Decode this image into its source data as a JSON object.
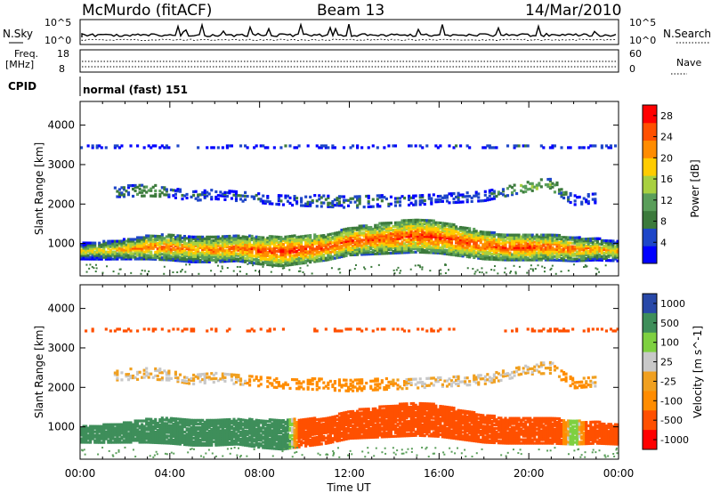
{
  "header": {
    "station": "McMurdo (fitACF)",
    "beam": "Beam 13",
    "date": "14/Mar/2010"
  },
  "noise_panel": {
    "left_label": "N.Sky",
    "right_label": "N.Search",
    "left_ticks": [
      "10^5",
      "10^0"
    ],
    "right_ticks": [
      "10^5",
      "10^0"
    ]
  },
  "freq_panel": {
    "left_label_1": "Freq.",
    "left_label_2": "[MHz]",
    "right_label": "Nave",
    "left_ticks": [
      "18",
      "8"
    ],
    "right_ticks": [
      "60",
      "0"
    ]
  },
  "cpid_panel": {
    "label": "CPID",
    "mode": "normal (fast) 151"
  },
  "colors": {
    "power": [
      "#0000ff",
      "#1e46c8",
      "#3c7a3c",
      "#5a9e5a",
      "#a8d040",
      "#ffcc00",
      "#ff8c00",
      "#ff5000",
      "#ff0000"
    ],
    "velocity": [
      "#ff0000",
      "#ff5000",
      "#ff8c00",
      "#f0a020",
      "#c8c8c8",
      "#7ed040",
      "#3e8e5a",
      "#2848a8"
    ]
  },
  "chart_data": [
    {
      "type": "heatmap",
      "title": "",
      "xlabel": "",
      "ylabel": "Slant Range [km]",
      "xlim": [
        0,
        24
      ],
      "ylim": [
        180,
        4600
      ],
      "x_ticks": [
        "00:00",
        "04:00",
        "08:00",
        "12:00",
        "16:00",
        "20:00",
        "00:00"
      ],
      "y_ticks": [
        1000,
        2000,
        3000,
        4000
      ],
      "colorbar_label": "Power [dB]",
      "colorbar_ticks": [
        4,
        8,
        12,
        16,
        20,
        24,
        28
      ],
      "colorbar_range": [
        0,
        30
      ],
      "layers": [
        {
          "name": "main",
          "x": [
            0,
            1,
            2,
            3,
            4,
            5,
            6,
            7,
            8,
            9,
            10,
            11,
            12,
            13,
            14,
            15,
            16,
            17,
            18,
            19,
            20,
            21,
            22,
            23,
            24
          ],
          "center_km": [
            800,
            820,
            850,
            900,
            900,
            850,
            850,
            880,
            820,
            800,
            850,
            900,
            1050,
            1100,
            1150,
            1200,
            1150,
            1050,
            950,
            900,
            900,
            900,
            850,
            850,
            800
          ],
          "width_km": [
            400,
            450,
            500,
            600,
            650,
            650,
            650,
            650,
            700,
            750,
            700,
            650,
            700,
            750,
            800,
            850,
            800,
            750,
            700,
            650,
            650,
            650,
            600,
            550,
            500
          ],
          "power_db": [
            18,
            20,
            22,
            24,
            24,
            22,
            24,
            24,
            26,
            27,
            27,
            26,
            26,
            25,
            26,
            26,
            27,
            27,
            26,
            26,
            26,
            25,
            24,
            22,
            20
          ]
        },
        {
          "name": "far",
          "x": [
            1.5,
            3,
            4,
            5,
            6,
            7,
            9,
            12,
            15,
            18,
            20,
            21,
            22,
            23
          ],
          "center_km": [
            2300,
            2350,
            2300,
            2200,
            2250,
            2200,
            2100,
            2050,
            2100,
            2200,
            2450,
            2500,
            2100,
            2150
          ],
          "width_km": [
            250,
            300,
            250,
            250,
            250,
            250,
            250,
            300,
            250,
            250,
            250,
            300,
            250,
            250
          ],
          "power_db": [
            6,
            12,
            8,
            6,
            6,
            6,
            6,
            8,
            6,
            6,
            14,
            12,
            6,
            6
          ]
        },
        {
          "name": "top",
          "x": [
            0,
            24
          ],
          "center_km": [
            3450,
            3450
          ],
          "width_km": [
            60,
            60
          ],
          "power_db": [
            6,
            6
          ]
        }
      ]
    },
    {
      "type": "heatmap",
      "title": "",
      "xlabel": "Time UT",
      "ylabel": "Slant Range [km]",
      "xlim": [
        0,
        24
      ],
      "ylim": [
        180,
        4600
      ],
      "x_ticks": [
        "00:00",
        "04:00",
        "08:00",
        "12:00",
        "16:00",
        "20:00",
        "00:00"
      ],
      "y_ticks": [
        1000,
        2000,
        3000,
        4000
      ],
      "colorbar_label": "Velocity [m s^-1]",
      "colorbar_ticks": [
        "1000",
        "500",
        "100",
        "25",
        "-25",
        "-100",
        "-500",
        "-1000"
      ],
      "layers": [
        {
          "name": "main",
          "x": [
            0,
            1,
            2,
            3,
            4,
            5,
            6,
            7,
            8,
            9,
            10,
            11,
            12,
            13,
            14,
            15,
            16,
            17,
            18,
            19,
            20,
            21,
            22,
            23,
            24
          ],
          "center_km": [
            800,
            820,
            850,
            900,
            900,
            850,
            850,
            880,
            820,
            800,
            850,
            900,
            1050,
            1100,
            1150,
            1200,
            1150,
            1050,
            950,
            900,
            900,
            900,
            850,
            850,
            800
          ],
          "width_km": [
            400,
            450,
            500,
            600,
            650,
            650,
            650,
            650,
            700,
            750,
            700,
            650,
            700,
            750,
            800,
            850,
            800,
            750,
            700,
            650,
            650,
            650,
            600,
            550,
            500
          ],
          "velocity_ms": [
            200,
            300,
            300,
            300,
            300,
            300,
            300,
            300,
            300,
            300,
            -300,
            -300,
            -300,
            -300,
            -300,
            -300,
            -300,
            -300,
            -300,
            -300,
            -300,
            -300,
            100,
            -300,
            -300
          ]
        },
        {
          "name": "far",
          "x": [
            1.5,
            3,
            4,
            5,
            6,
            7,
            9,
            12,
            15,
            18,
            20,
            21,
            22,
            23
          ],
          "center_km": [
            2300,
            2350,
            2300,
            2200,
            2250,
            2200,
            2100,
            2050,
            2100,
            2200,
            2450,
            2500,
            2100,
            2150
          ],
          "width_km": [
            250,
            300,
            250,
            250,
            250,
            250,
            250,
            300,
            250,
            250,
            250,
            300,
            250,
            250
          ],
          "velocity_ms": [
            0,
            0,
            0,
            0,
            0,
            0,
            -80,
            -80,
            0,
            0,
            0,
            0,
            -80,
            0
          ]
        },
        {
          "name": "top",
          "x": [
            0,
            24
          ],
          "center_km": [
            3450,
            3450
          ],
          "width_km": [
            60,
            60
          ],
          "velocity_ms": [
            -200,
            -200
          ]
        }
      ]
    }
  ],
  "x_axis_title": "Time UT"
}
